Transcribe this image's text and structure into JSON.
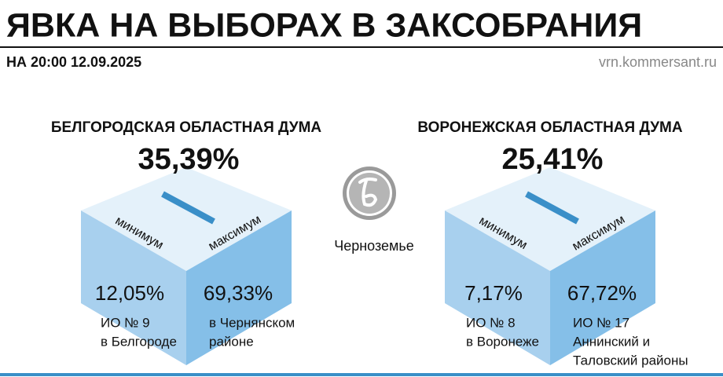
{
  "header": {
    "title": "ЯВКА НА ВЫБОРАХ В ЗАКСОБРАНИЯ",
    "subtitle": "НА 20:00 12.09.2025",
    "source": "vrn.kommersant.ru"
  },
  "center": {
    "label": "Черноземье"
  },
  "panels": [
    {
      "title": "БЕЛГОРОДСКАЯ ОБЛАСТНАЯ ДУМА",
      "turnout": "35,39%",
      "min": {
        "label": "минимум",
        "value": "12,05%",
        "place": [
          "ИО № 9",
          "в Белгороде"
        ]
      },
      "max": {
        "label": "максимум",
        "value": "69,33%",
        "place": [
          "в Чернянском",
          "районе"
        ]
      }
    },
    {
      "title": "ВОРОНЕЖСКАЯ ОБЛАСТНАЯ ДУМА",
      "turnout": "25,41%",
      "min": {
        "label": "минимум",
        "value": "7,17%",
        "place": [
          "ИО № 8",
          "в Воронеже"
        ]
      },
      "max": {
        "label": "максимум",
        "value": "67,72%",
        "place": [
          "ИО № 17",
          "Аннинский и",
          "Таловский районы"
        ]
      }
    }
  ]
}
